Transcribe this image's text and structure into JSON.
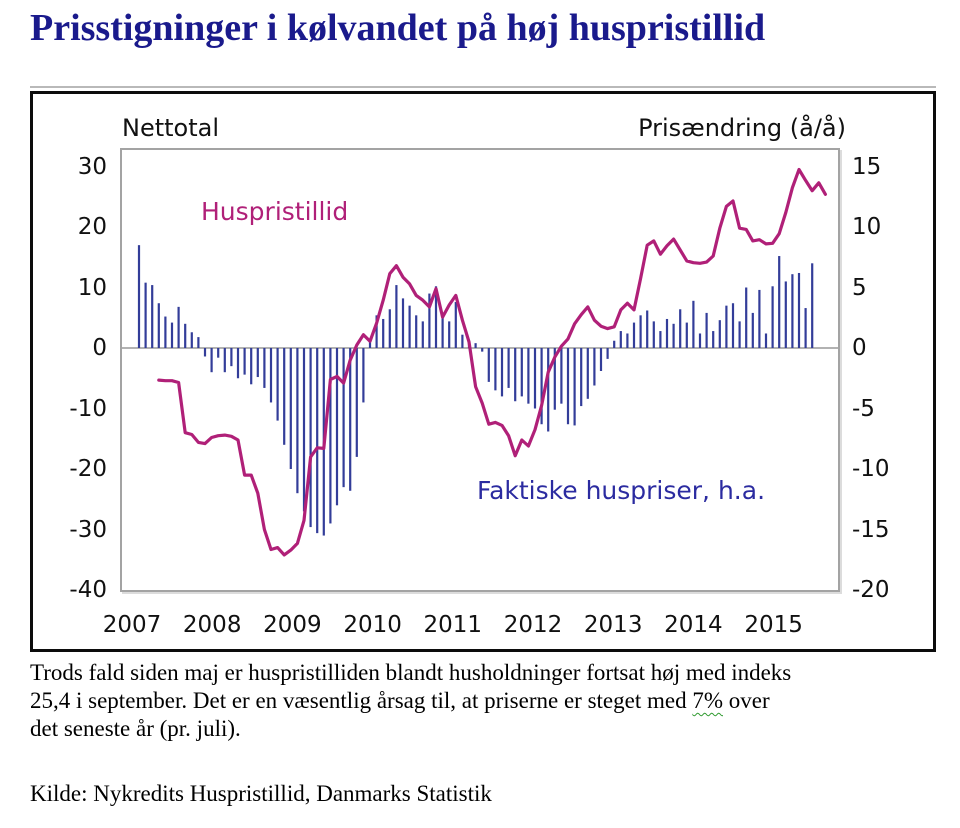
{
  "title": "Prisstigninger i kølvandet på høj huspristillid",
  "caption": {
    "line1": "Trods fald siden maj er huspristilliden blandt husholdninger fortsat høj med indeks",
    "line2_pre": "25,4 i september. Det er en væsentlig årsag til, at priserne er steget med ",
    "line2_pct": "7%",
    "line2_post": " over",
    "line3": "det seneste år (pr. juli)."
  },
  "source": "Kilde: Nykredits Huspristillid,  Danmarks Statistik",
  "chart_data": {
    "type": "bar+line combo, dual axis",
    "left_axis_title": "Nettotal",
    "right_axis_title": "Prisændring (å/å)",
    "left_ticks": [
      30,
      20,
      10,
      0,
      -10,
      -20,
      -30,
      -40
    ],
    "right_ticks": [
      15,
      10,
      5,
      0,
      -5,
      -10,
      -15,
      -20
    ],
    "left_ylim": [
      -40,
      32.7
    ],
    "right_ylim": [
      -20,
      16.35
    ],
    "grid": "zero line only",
    "x_labels": [
      "2007",
      "2008",
      "2009",
      "2010",
      "2011",
      "2012",
      "2013",
      "2014",
      "2015"
    ],
    "x_frequency": "monthly from 2007-01",
    "colors": {
      "line": "#b02078",
      "bar": "#333d99",
      "bar_label_text": "#2b2ba0",
      "title_navy": "#1a1a8c",
      "zero_line": "#999999"
    },
    "series": [
      {
        "name": "Huspristillid",
        "type": "line",
        "axis": "left",
        "values": [
          null,
          null,
          null,
          -5.3,
          -5.4,
          -5.4,
          -5.7,
          -14.0,
          -14.3,
          -15.6,
          -15.8,
          -14.8,
          -14.5,
          -14.4,
          -14.6,
          -15.2,
          -21.0,
          -21.0,
          -24.0,
          -30.0,
          -33.3,
          -33.0,
          -34.2,
          -33.4,
          -32.3,
          -28.5,
          -18.0,
          -16.5,
          -16.6,
          -5.2,
          -4.7,
          -5.8,
          -2.0,
          0.5,
          2.2,
          1.1,
          4.1,
          7.9,
          12.3,
          13.6,
          11.7,
          10.6,
          8.7,
          7.9,
          6.8,
          9.8,
          5.1,
          7.1,
          8.7,
          4.6,
          1.0,
          -6.4,
          -9.1,
          -12.6,
          -12.3,
          -12.8,
          -14.5,
          -17.8,
          -15.2,
          -16.2,
          -13.5,
          -9.5,
          -4.0,
          -1.5,
          0.3,
          1.5,
          4.0,
          5.5,
          6.8,
          4.6,
          3.6,
          3.2,
          3.5,
          6.3,
          7.4,
          6.3,
          11.5,
          17.0,
          17.7,
          15.5,
          16.9,
          18.0,
          16.2,
          14.4,
          14.1,
          14.0,
          14.2,
          15.2,
          19.8,
          23.4,
          24.3,
          19.8,
          19.6,
          17.7,
          17.9,
          17.2,
          17.3,
          18.9,
          22.4,
          26.5,
          29.5,
          27.7,
          26.0,
          27.3,
          25.4
        ]
      },
      {
        "name": "Faktiske huspriser, h.a.",
        "type": "bar",
        "axis": "right",
        "values": [
          8.5,
          5.4,
          5.2,
          3.7,
          2.6,
          2.1,
          3.4,
          2.0,
          1.3,
          0.9,
          -0.7,
          -2.0,
          -0.8,
          -2.0,
          -1.5,
          -2.5,
          -2.2,
          -3.0,
          -2.4,
          -3.3,
          -4.5,
          -6.0,
          -8.0,
          -10.0,
          -12.0,
          -13.5,
          -14.8,
          -15.3,
          -15.5,
          -14.5,
          -13.0,
          -11.5,
          -11.8,
          -9.0,
          -4.5,
          0.5,
          2.7,
          2.4,
          3.2,
          5.2,
          4.1,
          3.5,
          2.7,
          2.2,
          4.5,
          5.1,
          2.6,
          2.2,
          3.8,
          1.1,
          0.4,
          0.4,
          -0.3,
          -2.8,
          -3.5,
          -4.0,
          -3.3,
          -4.4,
          -4.0,
          -4.6,
          -5.0,
          -6.3,
          -6.9,
          -5.1,
          -4.6,
          -6.3,
          -6.4,
          -4.8,
          -4.2,
          -3.1,
          -1.9,
          -0.9,
          0.6,
          1.4,
          1.2,
          2.1,
          2.7,
          3.1,
          2.2,
          1.4,
          2.4,
          2.0,
          3.2,
          2.1,
          3.9,
          1.2,
          2.9,
          1.4,
          2.3,
          3.5,
          3.7,
          2.2,
          5.0,
          2.9,
          4.8,
          1.2,
          5.1,
          7.6,
          5.5,
          6.1,
          6.2,
          3.3,
          7.0
        ]
      }
    ],
    "annotations": [
      {
        "text": "Huspristillid",
        "color": "#b02078"
      },
      {
        "text": "Faktiske huspriser, h.a.",
        "color": "#2b2ba0"
      }
    ]
  }
}
